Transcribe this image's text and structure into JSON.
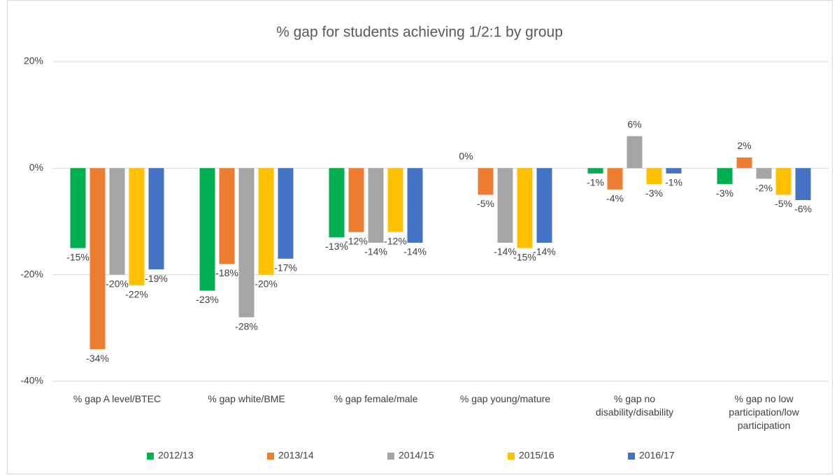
{
  "chart_data": {
    "type": "bar",
    "title": "% gap for students achieving 1/2:1 by group",
    "categories": [
      "% gap A level/BTEC",
      "% gap white/BME",
      "% gap female/male",
      "% gap young/mature",
      "% gap no disability/disability",
      "% gap no low participation/low participation"
    ],
    "series": [
      {
        "name": "2012/13",
        "color": "#00b050",
        "values": [
          -15,
          -23,
          -13,
          0,
          -1,
          -3
        ],
        "value_labels": [
          "-15%",
          "-23%",
          "-13%",
          "0%",
          "-1%",
          "-3%"
        ]
      },
      {
        "name": "2013/14",
        "color": "#ed7d31",
        "values": [
          -34,
          -18,
          -12,
          -5,
          -4,
          2
        ],
        "value_labels": [
          "-34%",
          "-18%",
          "-12%",
          "-5%",
          "-4%",
          "2%"
        ]
      },
      {
        "name": "2014/15",
        "color": "#a5a5a5",
        "values": [
          -20,
          -28,
          -14,
          -14,
          6,
          -2
        ],
        "value_labels": [
          "-20%",
          "-28%",
          "-14%",
          "-14%",
          "6%",
          "-2%"
        ]
      },
      {
        "name": "2015/16",
        "color": "#ffc000",
        "values": [
          -22,
          -20,
          -12,
          -15,
          -3,
          -5
        ],
        "value_labels": [
          "-22%",
          "-20%",
          "-12%",
          "-15%",
          "-3%",
          "-5%"
        ]
      },
      {
        "name": "2016/17",
        "color": "#4472c4",
        "values": [
          -19,
          -17,
          -14,
          -14,
          -1,
          -6
        ],
        "value_labels": [
          "-19%",
          "-17%",
          "-14%",
          "-14%",
          "-1%",
          "-6%"
        ]
      }
    ],
    "ylim": [
      -40,
      20
    ],
    "yticks": [
      {
        "value": -40,
        "label": "-40%"
      },
      {
        "value": -20,
        "label": "-20%"
      },
      {
        "value": 0,
        "label": "0%"
      },
      {
        "value": 20,
        "label": "20%"
      }
    ],
    "grid": true,
    "legend": "bottom"
  }
}
